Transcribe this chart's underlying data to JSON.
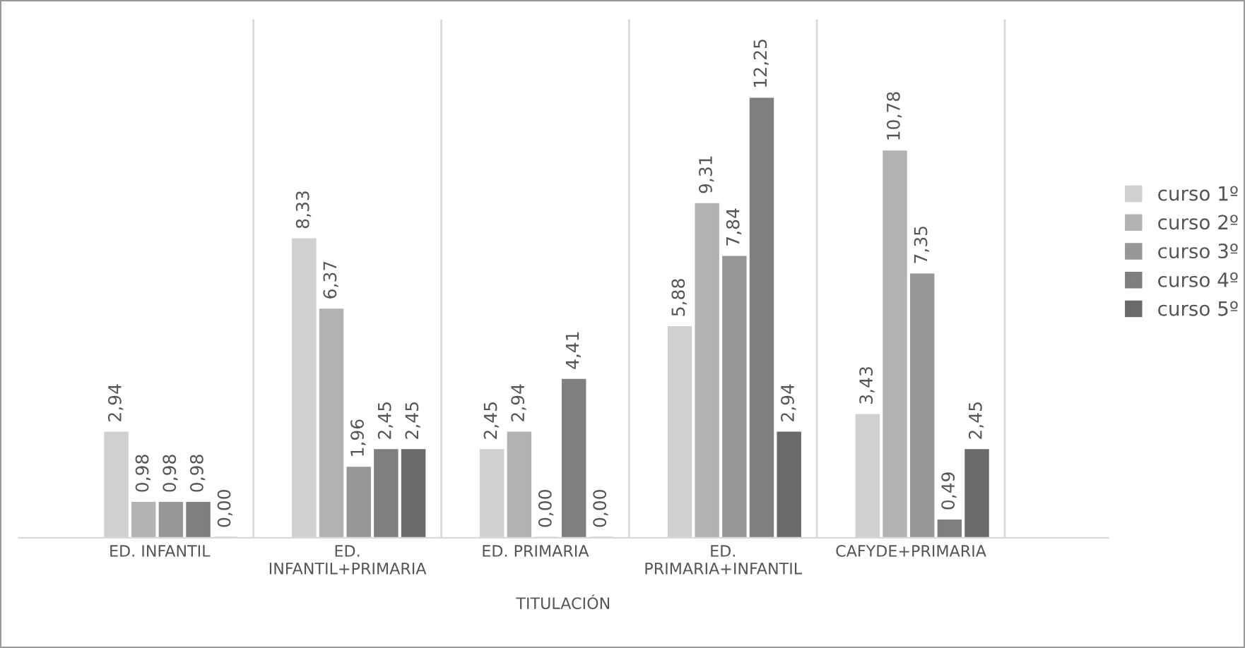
{
  "chart_data": {
    "type": "bar",
    "xlabel": "TITULACIÓN",
    "categories": [
      "ED. INFANTIL",
      "ED.\nINFANTIL+PRIMARIA",
      "ED. PRIMARIA",
      "ED.\nPRIMARIA+INFANTIL",
      "CAFYDE+PRIMARIA"
    ],
    "series": [
      {
        "name": "curso 1º",
        "color": "#d0d0d0",
        "values": [
          2.94,
          8.33,
          2.45,
          5.88,
          3.43
        ],
        "value_labels": [
          "2,94",
          "8,33",
          "2,45",
          "5,88",
          "3,43"
        ]
      },
      {
        "name": "curso 2º",
        "color": "#b2b2b2",
        "values": [
          0.98,
          6.37,
          2.94,
          9.31,
          10.78
        ],
        "value_labels": [
          "0,98",
          "6,37",
          "2,94",
          "9,31",
          "10,78"
        ]
      },
      {
        "name": "curso 3º",
        "color": "#979797",
        "values": [
          0.98,
          1.96,
          0.0,
          7.84,
          7.35
        ],
        "value_labels": [
          "0,98",
          "1,96",
          "0,00",
          "7,84",
          "7,35"
        ]
      },
      {
        "name": "curso 4º",
        "color": "#7f7f7f",
        "values": [
          0.98,
          2.45,
          4.41,
          12.25,
          0.49
        ],
        "value_labels": [
          "0,98",
          "2,45",
          "4,41",
          "12,25",
          "0,49"
        ]
      },
      {
        "name": "curso 5º",
        "color": "#6a6a6a",
        "values": [
          0.0,
          2.45,
          0.0,
          2.94,
          2.45
        ],
        "value_labels": [
          "0,00",
          "2,45",
          "0,00",
          "2,94",
          "2,45"
        ]
      }
    ],
    "legend": "right",
    "grid": false
  }
}
